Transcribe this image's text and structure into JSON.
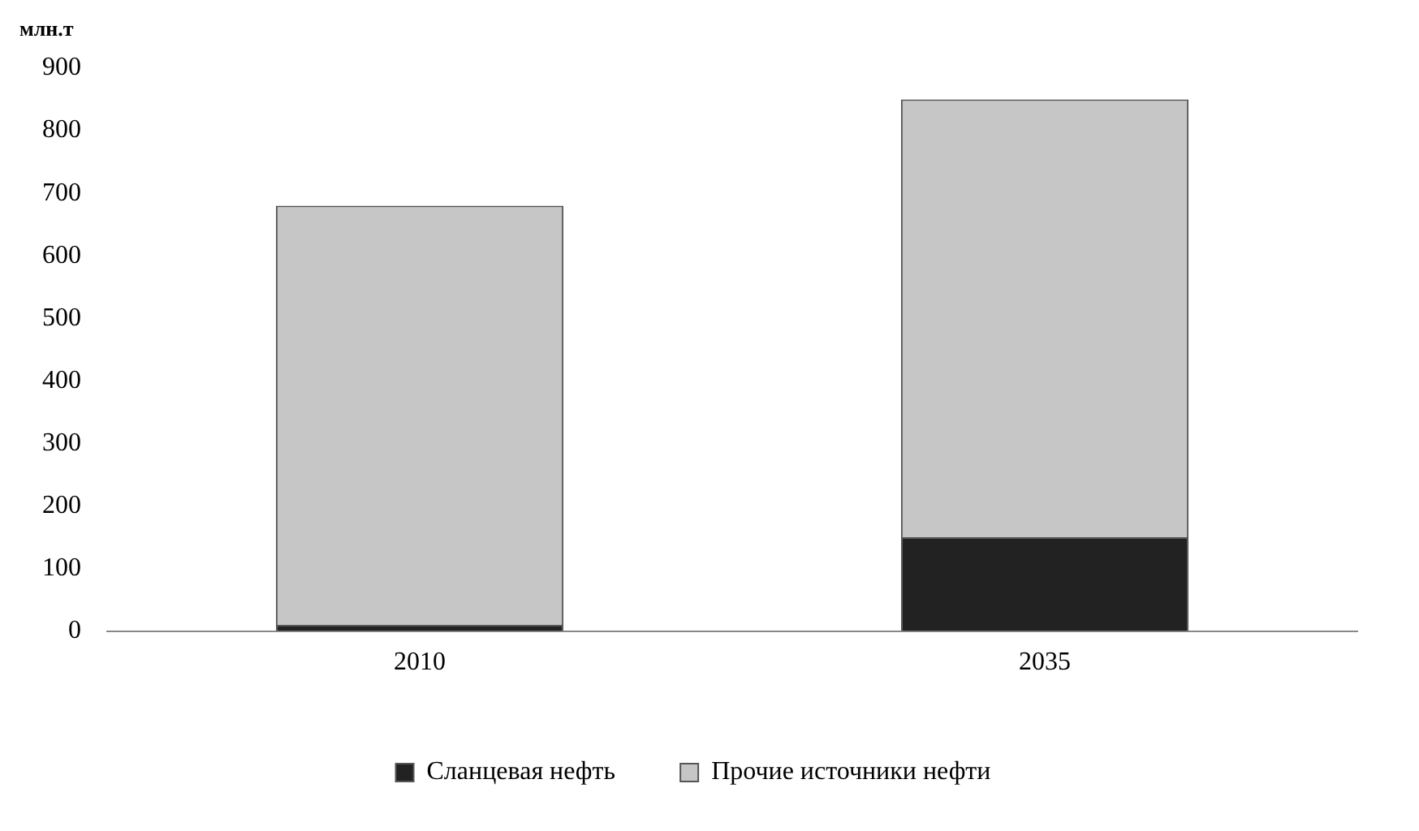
{
  "chart_data": {
    "type": "bar",
    "ylabel": "млн.т",
    "categories": [
      "2010",
      "2035"
    ],
    "stacked": true,
    "series": [
      {
        "name": "Сланцевая нефть",
        "color": "#222222",
        "values": [
          10,
          150
        ]
      },
      {
        "name": "Прочие источники нефти",
        "color": "#c6c6c6",
        "values": [
          670,
          700
        ]
      }
    ],
    "ylim": [
      0,
      900
    ],
    "yticks": [
      0,
      100,
      200,
      300,
      400,
      500,
      600,
      700,
      800,
      900
    ],
    "grid": false,
    "legend": "bottom"
  }
}
